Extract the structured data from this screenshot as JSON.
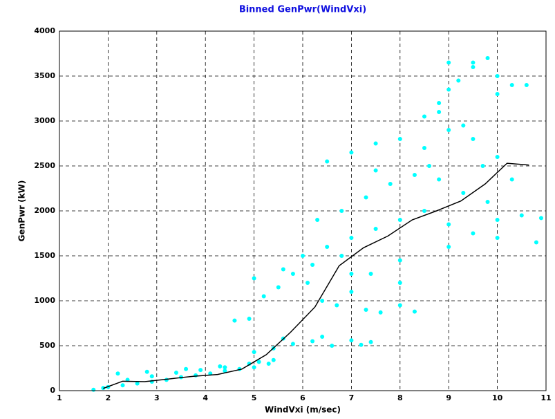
{
  "chart_data": {
    "type": "scatter",
    "title": "Binned GenPwr(WindVxi)",
    "title_color": "#1010e0",
    "x_label": "WindVxi (m/sec)",
    "y_label": "GenPwr (kW)",
    "xlim": [
      1,
      11
    ],
    "xticks": [
      1,
      2,
      3,
      4,
      5,
      6,
      7,
      8,
      9,
      10,
      11
    ],
    "ylim": [
      0,
      4000
    ],
    "yticks": [
      0,
      500,
      1000,
      1500,
      2000,
      2500,
      3000,
      3500,
      4000
    ],
    "grid": true,
    "series": [
      {
        "kind": "scatter",
        "color": "#00ffff",
        "x": [
          1.7,
          2.0,
          2.3,
          2.6,
          2.9,
          3.2,
          3.5,
          3.8,
          4.1,
          4.4,
          4.7,
          5.0,
          5.3,
          1.9,
          2.4,
          2.9,
          3.4,
          3.9,
          4.4,
          4.9,
          5.4,
          2.2,
          2.8,
          3.6,
          4.3,
          5.1,
          5.0,
          5.4,
          5.8,
          6.2,
          6.6,
          7.0,
          7.4,
          5.6,
          6.4,
          7.2,
          4.6,
          4.9,
          5.2,
          5.5,
          5.8,
          6.1,
          6.4,
          6.7,
          7.0,
          7.3,
          7.6,
          8.0,
          8.3,
          5.0,
          5.6,
          6.2,
          6.8,
          7.4,
          8.0,
          6.0,
          6.5,
          7.0,
          7.5,
          8.0,
          8.5,
          9.0,
          9.5,
          10.0,
          10.5,
          10.9,
          6.8,
          7.3,
          7.8,
          8.3,
          8.8,
          9.3,
          9.8,
          10.3,
          7.0,
          8.0,
          9.0,
          10.0,
          10.8,
          6.3,
          7.5,
          8.6,
          9.7,
          6.5,
          7.0,
          7.5,
          8.0,
          8.5,
          9.0,
          9.5,
          10.0,
          8.5,
          8.8,
          9.0,
          9.2,
          9.5,
          9.8,
          10.0,
          10.3,
          10.6,
          9.0,
          9.5,
          10.0,
          8.8,
          9.3
        ],
        "values": [
          10,
          40,
          60,
          80,
          100,
          120,
          150,
          170,
          190,
          220,
          240,
          260,
          300,
          30,
          120,
          160,
          200,
          230,
          260,
          300,
          340,
          190,
          210,
          240,
          270,
          320,
          430,
          470,
          520,
          550,
          500,
          560,
          540,
          580,
          600,
          510,
          780,
          800,
          1050,
          1150,
          1300,
          1200,
          1000,
          950,
          1100,
          900,
          870,
          950,
          880,
          1250,
          1350,
          1400,
          1500,
          1300,
          1200,
          1500,
          1600,
          1700,
          1800,
          1900,
          2000,
          1850,
          1750,
          1900,
          1950,
          1920,
          2000,
          2150,
          2300,
          2400,
          2350,
          2200,
          2100,
          2350,
          1300,
          1450,
          1600,
          1700,
          1650,
          1900,
          2450,
          2500,
          2500,
          2550,
          2650,
          2750,
          2800,
          2700,
          2900,
          2800,
          2600,
          3050,
          3200,
          3350,
          3450,
          3600,
          3700,
          3500,
          3400,
          3400,
          3650,
          3650,
          3300,
          3100,
          2950
        ]
      },
      {
        "kind": "line",
        "color": "#000000",
        "x": [
          1.9,
          2.3,
          2.75,
          3.25,
          3.75,
          4.25,
          4.75,
          5.25,
          5.75,
          6.25,
          6.75,
          7.25,
          7.75,
          8.25,
          8.75,
          9.25,
          9.75,
          10.2,
          10.65
        ],
        "values": [
          25,
          105,
          100,
          130,
          160,
          180,
          240,
          400,
          650,
          930,
          1390,
          1590,
          1720,
          1900,
          2000,
          2110,
          2300,
          2530,
          2510
        ]
      }
    ]
  }
}
